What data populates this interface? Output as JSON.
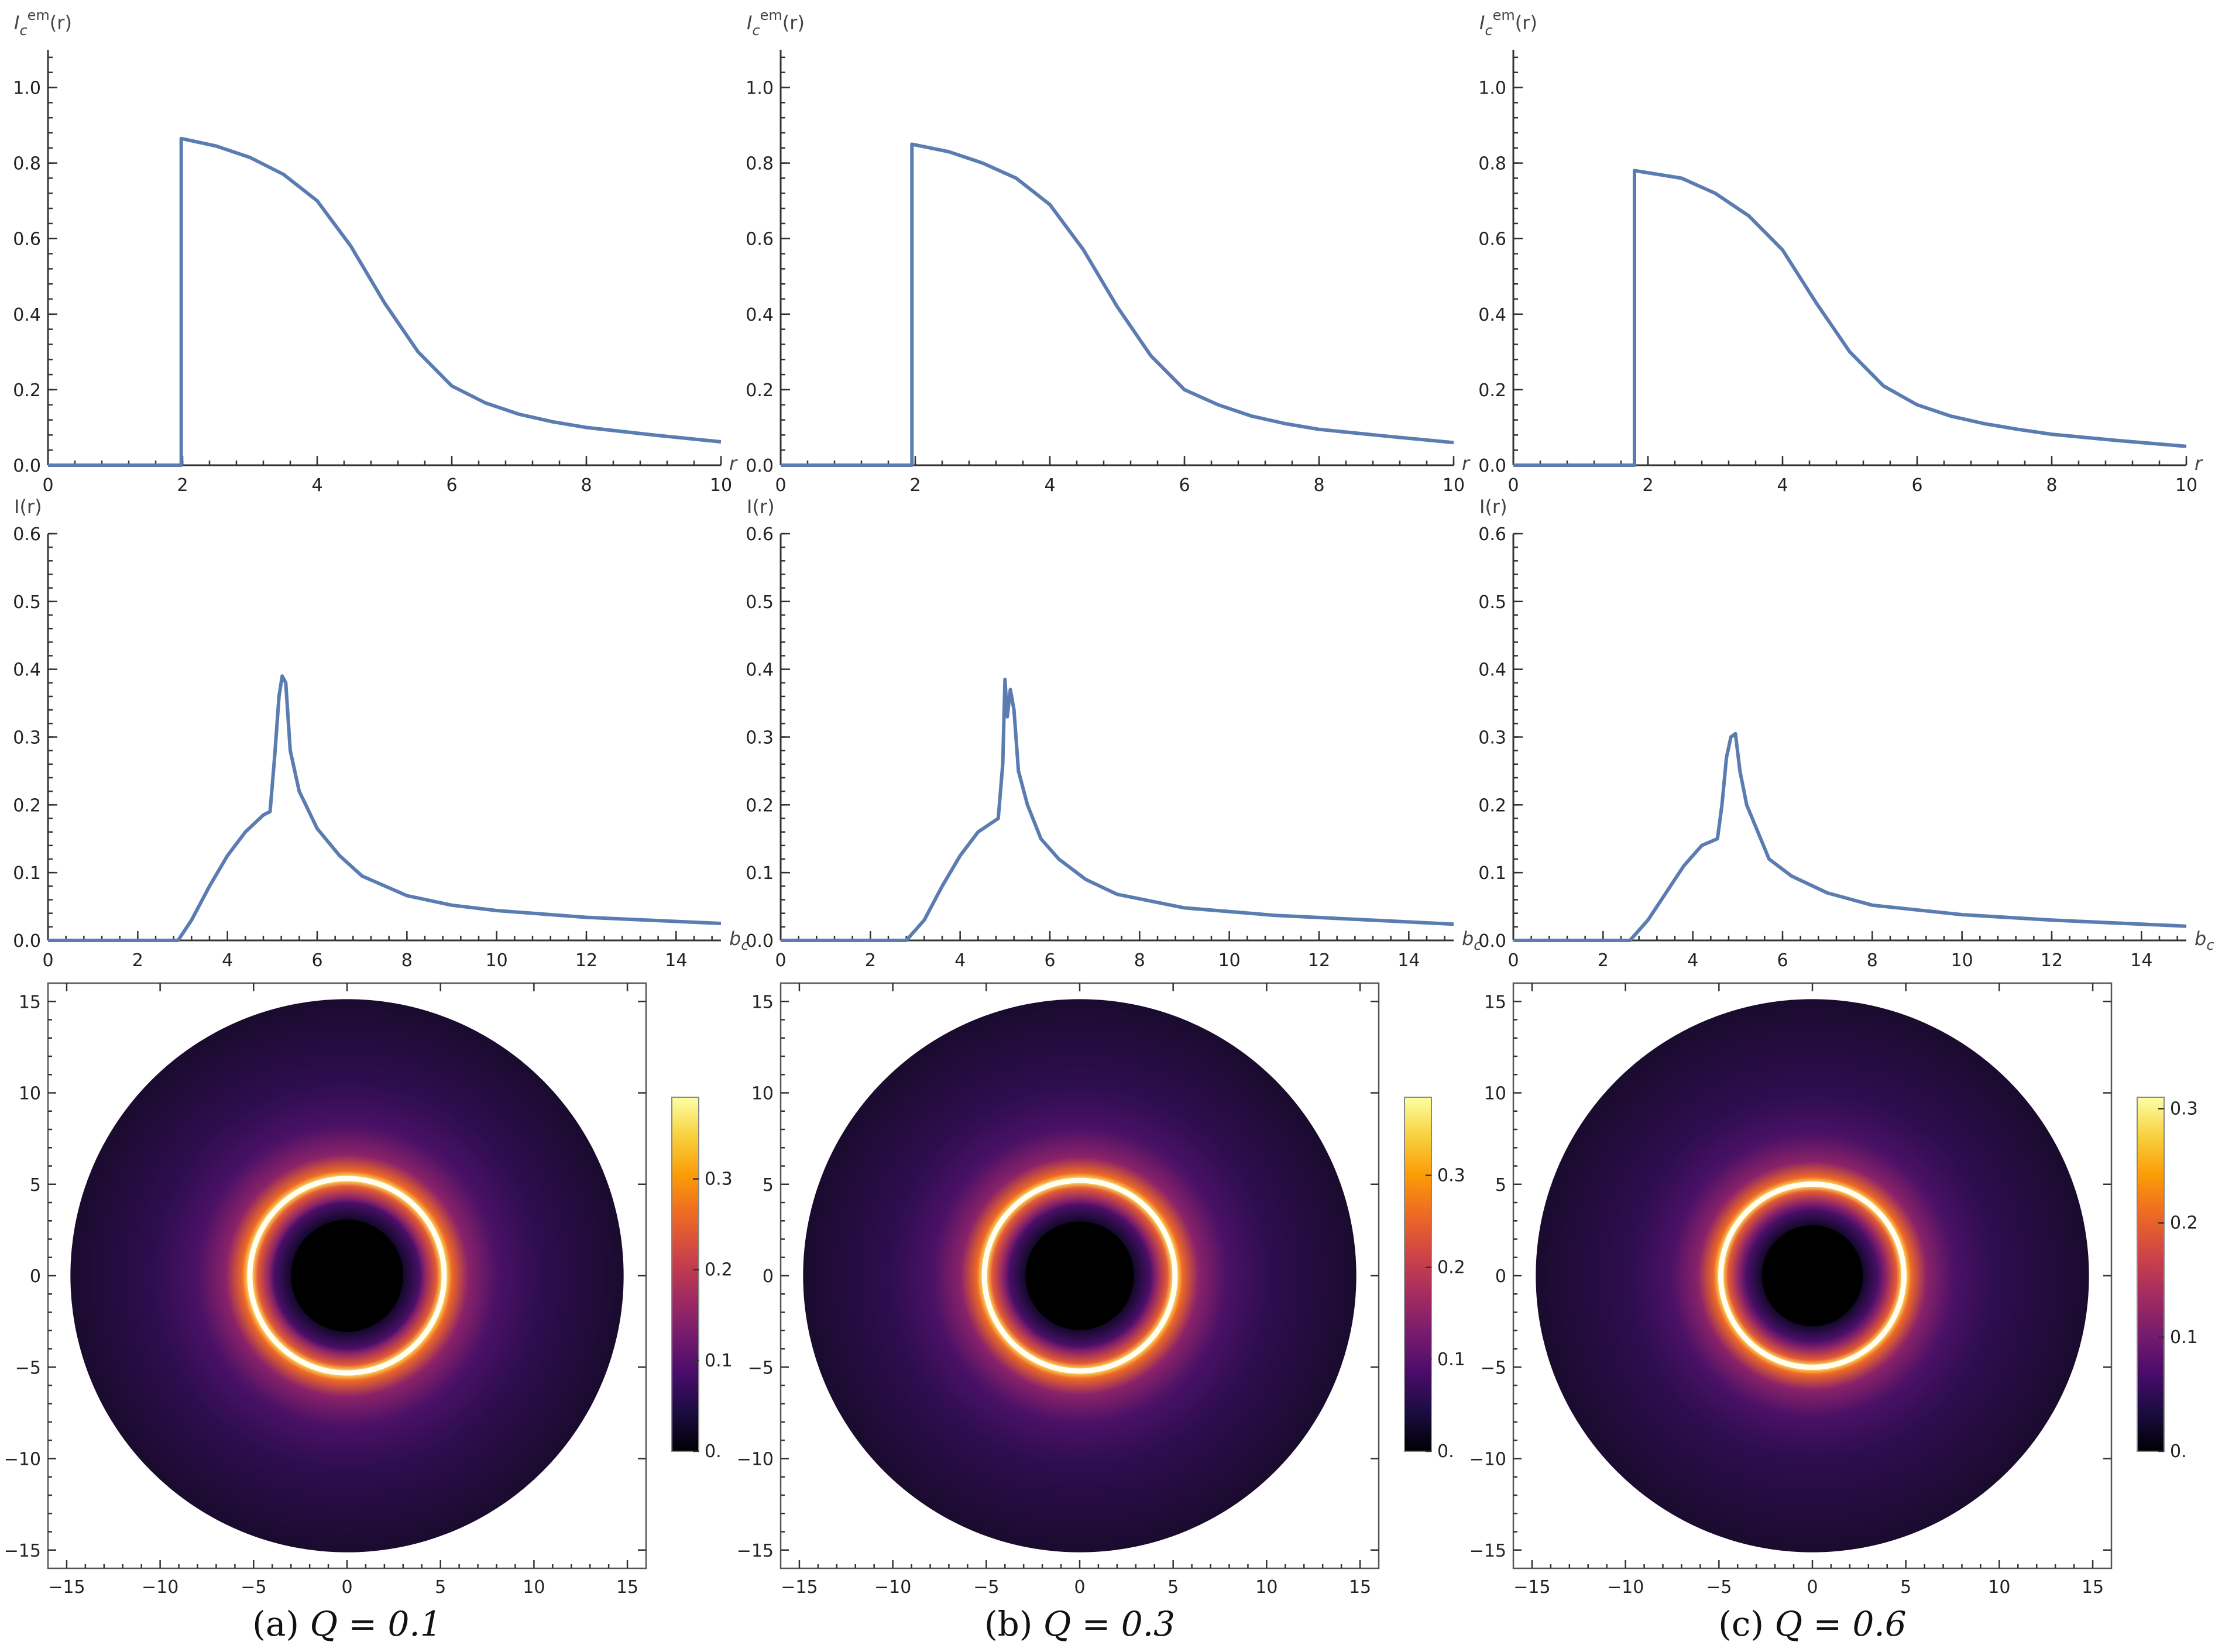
{
  "panels": [
    {
      "caption_prefix": "(a)",
      "caption": "Q = 0.1",
      "Q": 0.1
    },
    {
      "caption_prefix": "(b)",
      "caption": "Q = 0.3",
      "Q": 0.3
    },
    {
      "caption_prefix": "(c)",
      "caption": "Q = 0.6",
      "Q": 0.6
    }
  ],
  "colormap": [
    "#000004",
    "#1b0c41",
    "#4a0c6b",
    "#781c6d",
    "#a52c60",
    "#cf4446",
    "#ed6925",
    "#fb9b06",
    "#f7d13d",
    "#fcffa4"
  ],
  "chart_data": [
    {
      "type": "line",
      "panel": "a",
      "row": "emission",
      "xlabel": "r",
      "ylabel": "I_c^em(r)",
      "xlim": [
        0,
        10
      ],
      "ylim": [
        0,
        1.1
      ],
      "xticks": [
        "0",
        "2",
        "4",
        "6",
        "8",
        "10"
      ],
      "yticks": [
        "0.0",
        "0.2",
        "0.4",
        "0.6",
        "0.8",
        "1.0"
      ],
      "x": [
        0,
        1.98,
        1.98,
        2.5,
        3,
        3.5,
        4,
        4.5,
        5,
        5.5,
        6,
        6.5,
        7,
        7.5,
        8,
        9,
        10
      ],
      "y": [
        0,
        0,
        0.865,
        0.845,
        0.815,
        0.77,
        0.7,
        0.58,
        0.43,
        0.3,
        0.21,
        0.165,
        0.135,
        0.115,
        0.1,
        0.08,
        0.062
      ]
    },
    {
      "type": "line",
      "panel": "b",
      "row": "emission",
      "xlabel": "r",
      "ylabel": "I_c^em(r)",
      "xlim": [
        0,
        10
      ],
      "ylim": [
        0,
        1.1
      ],
      "xticks": [
        "0",
        "2",
        "4",
        "6",
        "8",
        "10"
      ],
      "yticks": [
        "0.0",
        "0.2",
        "0.4",
        "0.6",
        "0.8",
        "1.0"
      ],
      "x": [
        0,
        1.95,
        1.95,
        2.5,
        3,
        3.5,
        4,
        4.5,
        5,
        5.5,
        6,
        6.5,
        7,
        7.5,
        8,
        9,
        10
      ],
      "y": [
        0,
        0,
        0.85,
        0.83,
        0.8,
        0.76,
        0.69,
        0.57,
        0.42,
        0.29,
        0.2,
        0.16,
        0.13,
        0.11,
        0.095,
        0.077,
        0.06
      ]
    },
    {
      "type": "line",
      "panel": "c",
      "row": "emission",
      "xlabel": "r",
      "ylabel": "I_c^em(r)",
      "xlim": [
        0,
        10
      ],
      "ylim": [
        0,
        1.1
      ],
      "xticks": [
        "0",
        "2",
        "4",
        "6",
        "8",
        "10"
      ],
      "yticks": [
        "0.0",
        "0.2",
        "0.4",
        "0.6",
        "0.8",
        "1.0"
      ],
      "x": [
        0,
        1.8,
        1.8,
        2.5,
        3,
        3.5,
        4,
        4.5,
        5,
        5.5,
        6,
        6.5,
        7,
        7.5,
        8,
        9,
        10
      ],
      "y": [
        0,
        0,
        0.78,
        0.76,
        0.72,
        0.66,
        0.57,
        0.43,
        0.3,
        0.21,
        0.16,
        0.13,
        0.11,
        0.095,
        0.082,
        0.065,
        0.05
      ]
    },
    {
      "type": "line",
      "panel": "a",
      "row": "intensity",
      "xlabel": "b_c",
      "ylabel": "I(r)",
      "xlim": [
        0,
        15
      ],
      "ylim": [
        0,
        0.6
      ],
      "xticks": [
        "0",
        "2",
        "4",
        "6",
        "8",
        "10",
        "12",
        "14"
      ],
      "yticks": [
        "0.0",
        "0.1",
        "0.2",
        "0.3",
        "0.4",
        "0.5",
        "0.6"
      ],
      "x": [
        0,
        2.9,
        3.2,
        3.6,
        4.0,
        4.4,
        4.8,
        4.95,
        5.05,
        5.15,
        5.22,
        5.3,
        5.4,
        5.6,
        6.0,
        6.5,
        7.0,
        8.0,
        9.0,
        10,
        12,
        15
      ],
      "y": [
        0,
        0,
        0.03,
        0.08,
        0.125,
        0.16,
        0.185,
        0.19,
        0.27,
        0.36,
        0.39,
        0.38,
        0.28,
        0.22,
        0.165,
        0.125,
        0.095,
        0.066,
        0.052,
        0.044,
        0.034,
        0.025
      ]
    },
    {
      "type": "line",
      "panel": "b",
      "row": "intensity",
      "xlabel": "b_c",
      "ylabel": "I(r)",
      "xlim": [
        0,
        15
      ],
      "ylim": [
        0,
        0.6
      ],
      "xticks": [
        "0",
        "2",
        "4",
        "6",
        "8",
        "10",
        "12",
        "14"
      ],
      "yticks": [
        "0.0",
        "0.1",
        "0.2",
        "0.3",
        "0.4",
        "0.5",
        "0.6"
      ],
      "x": [
        0,
        2.8,
        3.2,
        3.6,
        4.0,
        4.4,
        4.85,
        4.95,
        5.0,
        5.05,
        5.12,
        5.2,
        5.3,
        5.5,
        5.8,
        6.2,
        6.8,
        7.5,
        9,
        11,
        15
      ],
      "y": [
        0,
        0,
        0.03,
        0.08,
        0.125,
        0.16,
        0.18,
        0.26,
        0.385,
        0.33,
        0.37,
        0.34,
        0.25,
        0.2,
        0.15,
        0.12,
        0.09,
        0.068,
        0.048,
        0.037,
        0.024
      ]
    },
    {
      "type": "line",
      "panel": "c",
      "row": "intensity",
      "xlabel": "b_c",
      "ylabel": "I(r)",
      "xlim": [
        0,
        15
      ],
      "ylim": [
        0,
        0.6
      ],
      "xticks": [
        "0",
        "2",
        "4",
        "6",
        "8",
        "10",
        "12",
        "14"
      ],
      "yticks": [
        "0.0",
        "0.1",
        "0.2",
        "0.3",
        "0.4",
        "0.5",
        "0.6"
      ],
      "x": [
        0,
        2.6,
        3.0,
        3.4,
        3.8,
        4.2,
        4.55,
        4.65,
        4.75,
        4.85,
        4.95,
        5.05,
        5.2,
        5.7,
        6.2,
        7.0,
        8.0,
        10,
        12,
        15
      ],
      "y": [
        0,
        0,
        0.03,
        0.07,
        0.11,
        0.14,
        0.15,
        0.2,
        0.27,
        0.3,
        0.305,
        0.25,
        0.2,
        0.12,
        0.095,
        0.07,
        0.052,
        0.038,
        0.03,
        0.021
      ]
    },
    {
      "type": "heatmap",
      "panel": "a",
      "row": "image",
      "xlim": [
        -16,
        16
      ],
      "ylim": [
        -16,
        16
      ],
      "ticks": [
        "-15",
        "-10",
        "-5",
        "0",
        "5",
        "10",
        "15"
      ],
      "colorbar": {
        "min": 0,
        "max": 0.39,
        "tick_values": [
          0,
          0.1,
          0.2,
          0.3
        ],
        "tick_labels": [
          "0.",
          "0.1",
          "0.2",
          "0.3"
        ]
      },
      "disk_radius": 14.8,
      "shadow_radius": 3.0,
      "ring_radius": 5.2
    },
    {
      "type": "heatmap",
      "panel": "b",
      "row": "image",
      "xlim": [
        -16,
        16
      ],
      "ylim": [
        -16,
        16
      ],
      "ticks": [
        "-15",
        "-10",
        "-5",
        "0",
        "5",
        "10",
        "15"
      ],
      "colorbar": {
        "min": 0,
        "max": 0.385,
        "tick_values": [
          0,
          0.1,
          0.2,
          0.3
        ],
        "tick_labels": [
          "0.",
          "0.1",
          "0.2",
          "0.3"
        ]
      },
      "disk_radius": 14.8,
      "shadow_radius": 2.9,
      "ring_radius": 5.1
    },
    {
      "type": "heatmap",
      "panel": "c",
      "row": "image",
      "xlim": [
        -16,
        16
      ],
      "ylim": [
        -16,
        16
      ],
      "ticks": [
        "-15",
        "-10",
        "-5",
        "0",
        "5",
        "10",
        "15"
      ],
      "colorbar": {
        "min": 0,
        "max": 0.31,
        "tick_values": [
          0,
          0.1,
          0.2,
          0.3
        ],
        "tick_labels": [
          "0.",
          "0.1",
          "0.2",
          "0.3"
        ]
      },
      "disk_radius": 14.8,
      "shadow_radius": 2.7,
      "ring_radius": 4.9
    }
  ]
}
